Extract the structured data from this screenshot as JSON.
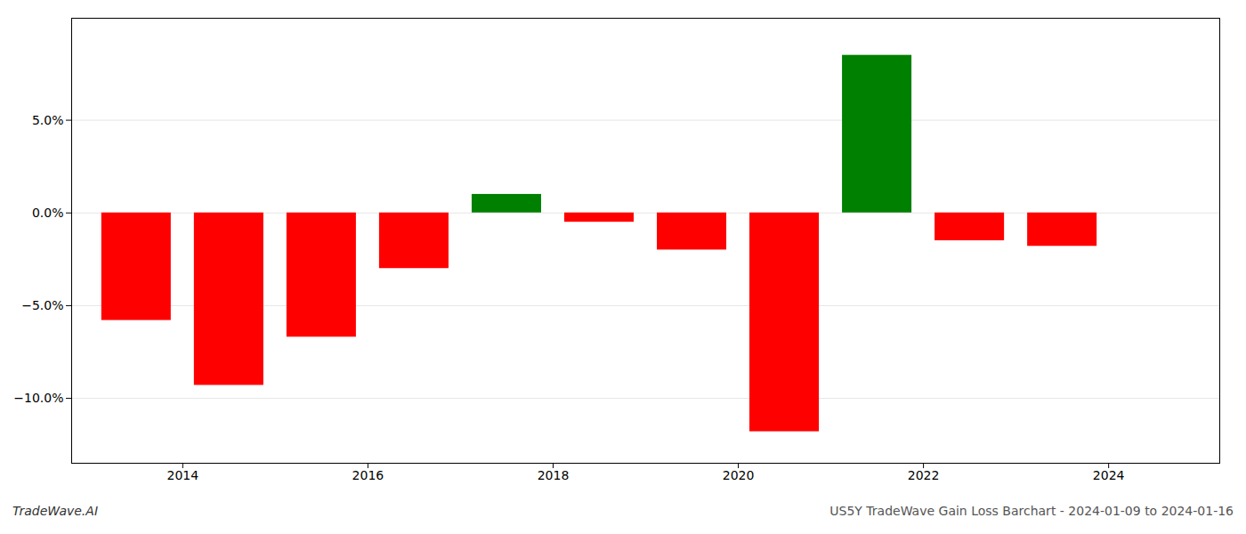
{
  "chart_data": {
    "type": "bar",
    "x": [
      2013.5,
      2014.5,
      2015.5,
      2016.5,
      2017.5,
      2018.5,
      2019.5,
      2020.5,
      2021.5,
      2022.5,
      2023.5
    ],
    "values": [
      -0.058,
      -0.093,
      -0.067,
      -0.03,
      0.01,
      -0.005,
      -0.02,
      -0.118,
      0.085,
      -0.015,
      -0.018
    ],
    "colors": [
      "#ff0000",
      "#ff0000",
      "#ff0000",
      "#ff0000",
      "#008000",
      "#ff0000",
      "#ff0000",
      "#ff0000",
      "#008000",
      "#ff0000",
      "#ff0000"
    ],
    "xlim": [
      2012.8,
      2025.2
    ],
    "xticks": [
      2014,
      2016,
      2018,
      2020,
      2022,
      2024
    ],
    "ylim": [
      -0.135,
      0.105
    ],
    "yticks": [
      {
        "value": -0.1,
        "label": "−10.0%"
      },
      {
        "value": -0.05,
        "label": "−5.0%"
      },
      {
        "value": 0.0,
        "label": "0.0%"
      },
      {
        "value": 0.05,
        "label": "5.0%"
      }
    ],
    "grid": true,
    "annotations": [
      "TradeWave.AI",
      "US5Y TradeWave Gain Loss Barchart - 2024-01-09 to 2024-01-16"
    ]
  }
}
